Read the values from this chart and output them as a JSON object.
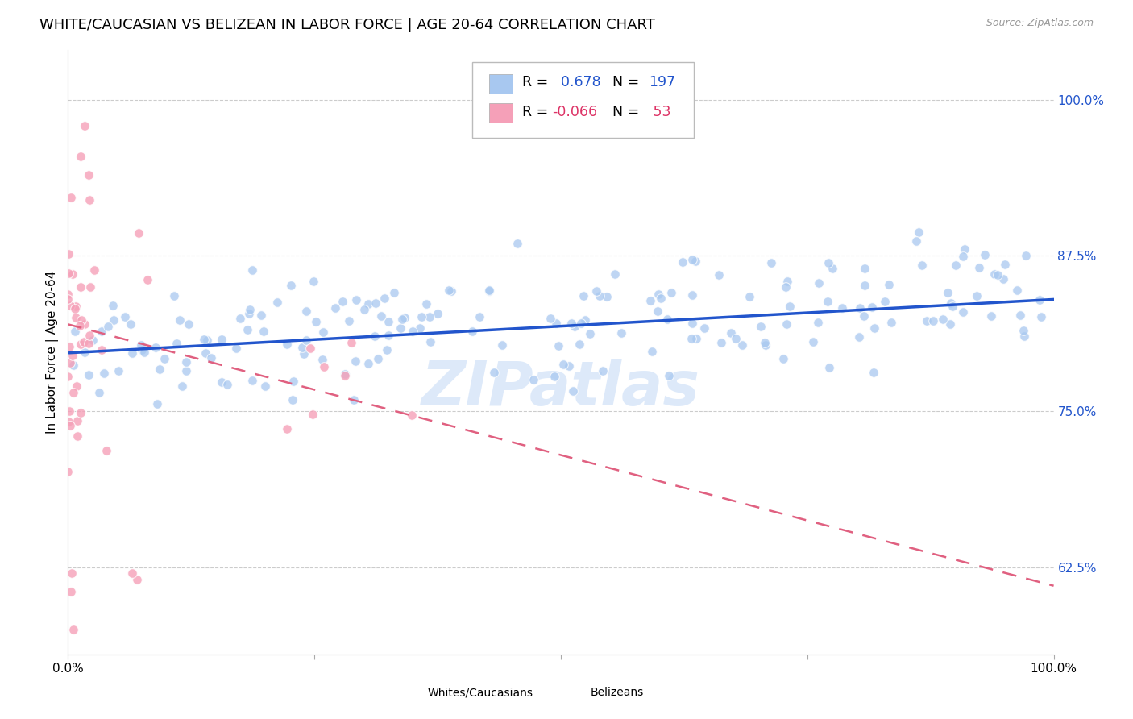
{
  "title": "WHITE/CAUCASIAN VS BELIZEAN IN LABOR FORCE | AGE 20-64 CORRELATION CHART",
  "source": "Source: ZipAtlas.com",
  "ylabel": "In Labor Force | Age 20-64",
  "ytick_labels": [
    "62.5%",
    "75.0%",
    "87.5%",
    "100.0%"
  ],
  "ytick_values": [
    0.625,
    0.75,
    0.875,
    1.0
  ],
  "xlim": [
    0.0,
    1.0
  ],
  "ylim": [
    0.555,
    1.04
  ],
  "blue_R": 0.678,
  "blue_N": 197,
  "pink_R": -0.066,
  "pink_N": 53,
  "blue_color": "#A8C8F0",
  "pink_color": "#F5A0B8",
  "blue_line_color": "#2255CC",
  "pink_line_color": "#E06080",
  "legend_label_blue": "Whites/Caucasians",
  "legend_label_pink": "Belizeans",
  "watermark": "ZIPatlas",
  "background_color": "#FFFFFF",
  "grid_color": "#CCCCCC",
  "title_fontsize": 13,
  "axis_label_fontsize": 11,
  "tick_fontsize": 11,
  "blue_scatter_seed": 42,
  "pink_scatter_seed": 123,
  "blue_trend_start_y": 0.797,
  "blue_trend_end_y": 0.84,
  "pink_trend_start_y": 0.82,
  "pink_trend_end_y": 0.61
}
